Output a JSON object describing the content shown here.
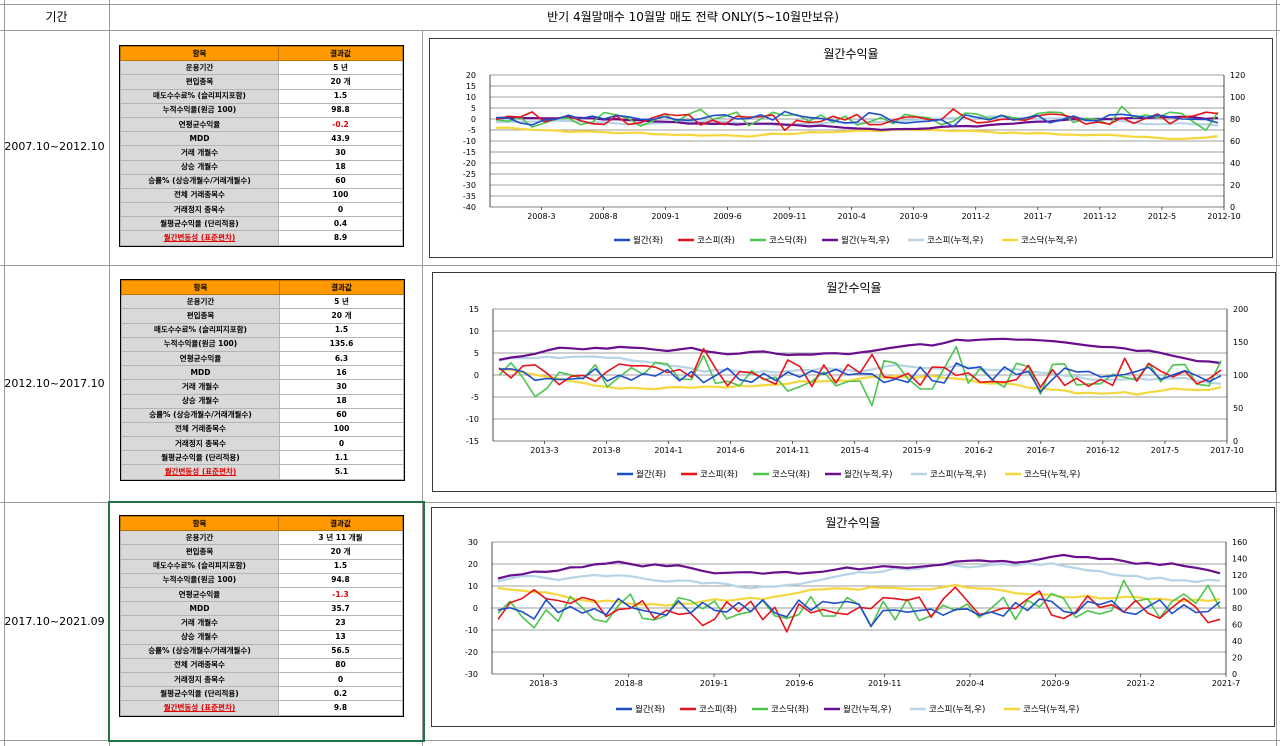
{
  "header": {
    "period_col": "기간",
    "title": "반기 4월말매수 10월말 매도 전략 ONLY(5~10월만보유)"
  },
  "colors": {
    "summary_header": "#ff9900",
    "label_bg": "#d9d9d9",
    "negative": "#e00000",
    "grid_border": "#9a9a9a",
    "selection": "#217346"
  },
  "sections": [
    {
      "period": "2007.10~2012.10",
      "summary": {
        "header": [
          "항목",
          "결과값"
        ],
        "rows": [
          {
            "k": "운용기간",
            "v": "5 년"
          },
          {
            "k": "편입종목",
            "v": "20 개"
          },
          {
            "k": "매도수수료% (슬리피지포함)",
            "v": "1.5"
          },
          {
            "k": "누적수익율(원금 100)",
            "v": "98.8"
          },
          {
            "k": "연평균수익율",
            "v": "-0.2",
            "red": true
          },
          {
            "k": "MDD",
            "v": "43.9"
          },
          {
            "k": "거래 개월수",
            "v": "30"
          },
          {
            "k": "상승 개월수",
            "v": "18"
          },
          {
            "k": "승률% (상승개월수/거래개월수)",
            "v": "60"
          },
          {
            "k": "전체 거래종목수",
            "v": "100"
          },
          {
            "k": "거래정지 종목수",
            "v": "0"
          },
          {
            "k": "월평균수익율 (단리적용)",
            "v": "0.4"
          },
          {
            "k": "월간변동성 (표준편차)",
            "v": "8.9",
            "link": true
          }
        ]
      },
      "chart": {
        "title": "월간수익율",
        "left_ticks": [
          "20",
          "15",
          "10",
          "5",
          "0",
          "-5",
          "-10",
          "-15",
          "-20",
          "-25",
          "-30",
          "-35",
          "-40"
        ],
        "right_ticks": [
          "120",
          "100",
          "80",
          "60",
          "40",
          "20",
          "0"
        ],
        "x_ticks": [
          "2008-3",
          "2008-8",
          "2009-1",
          "2009-6",
          "2009-11",
          "2010-4",
          "2010-9",
          "2011-2",
          "2011-7",
          "2011-12",
          "2012-5",
          "2012-10"
        ]
      }
    },
    {
      "period": "2012.10~2017.10",
      "summary": {
        "header": [
          "항목",
          "결과값"
        ],
        "rows": [
          {
            "k": "운용기간",
            "v": "5 년"
          },
          {
            "k": "편입종목",
            "v": "20 개"
          },
          {
            "k": "매도수수료% (슬리피지포함)",
            "v": "1.5"
          },
          {
            "k": "누적수익율(원금 100)",
            "v": "135.6"
          },
          {
            "k": "연평균수익율",
            "v": "6.3"
          },
          {
            "k": "MDD",
            "v": "16"
          },
          {
            "k": "거래 개월수",
            "v": "30"
          },
          {
            "k": "상승 개월수",
            "v": "18"
          },
          {
            "k": "승률% (상승개월수/거래개월수)",
            "v": "60"
          },
          {
            "k": "전체 거래종목수",
            "v": "100"
          },
          {
            "k": "거래정지 종목수",
            "v": "0"
          },
          {
            "k": "월평균수익율 (단리적용)",
            "v": "1.1"
          },
          {
            "k": "월간변동성 (표준편차)",
            "v": "5.1",
            "link": true
          }
        ]
      },
      "chart": {
        "title": "월간수익율",
        "left_ticks": [
          "15",
          "10",
          "5",
          "0",
          "-5",
          "-10",
          "-15"
        ],
        "right_ticks": [
          "200",
          "150",
          "100",
          "50",
          "0"
        ],
        "x_ticks": [
          "2013-3",
          "2013-8",
          "2014-1",
          "2014-6",
          "2014-11",
          "2015-4",
          "2015-9",
          "2016-2",
          "2016-7",
          "2016-12",
          "2017-5",
          "2017-10"
        ]
      }
    },
    {
      "period": "2017.10~2021.09",
      "summary": {
        "header": [
          "항목",
          "결과값"
        ],
        "rows": [
          {
            "k": "운용기간",
            "v": "3 년 11 개월"
          },
          {
            "k": "편입종목",
            "v": "20 개"
          },
          {
            "k": "매도수수료% (슬리피지포함)",
            "v": "1.5"
          },
          {
            "k": "누적수익율(원금 100)",
            "v": "94.8"
          },
          {
            "k": "연평균수익율",
            "v": "-1.3",
            "red": true
          },
          {
            "k": "MDD",
            "v": "35.7"
          },
          {
            "k": "거래 개월수",
            "v": "23"
          },
          {
            "k": "상승 개월수",
            "v": "13"
          },
          {
            "k": "승률% (상승개월수/거래개월수)",
            "v": "56.5"
          },
          {
            "k": "전체 거래종목수",
            "v": "80"
          },
          {
            "k": "거래정지 종목수",
            "v": "0"
          },
          {
            "k": "월평균수익율 (단리적용)",
            "v": "0.2"
          },
          {
            "k": "월간변동성 (표준편차)",
            "v": "9.8",
            "link": true
          }
        ]
      },
      "chart": {
        "title": "월간수익율",
        "left_ticks": [
          "30",
          "20",
          "10",
          "0",
          "-10",
          "-20",
          "-30"
        ],
        "right_ticks": [
          "160",
          "140",
          "120",
          "100",
          "80",
          "60",
          "40",
          "20",
          "0"
        ],
        "x_ticks": [
          "2018-3",
          "2018-8",
          "2019-1",
          "2019-6",
          "2019-11",
          "2020-4",
          "2020-9",
          "2021-2",
          "2021-7"
        ]
      }
    }
  ],
  "legend": [
    {
      "name": "월간(좌)",
      "color": "#1f4fc8"
    },
    {
      "name": "코스피(좌)",
      "color": "#e8141b"
    },
    {
      "name": "코스닥(좌)",
      "color": "#4ec44e"
    },
    {
      "name": "월간(누적,우)",
      "color": "#6a0f8e"
    },
    {
      "name": "코스피(누적,우)",
      "color": "#b7d3e6"
    },
    {
      "name": "코스닥(누적,우)",
      "color": "#f5d63d"
    }
  ]
}
